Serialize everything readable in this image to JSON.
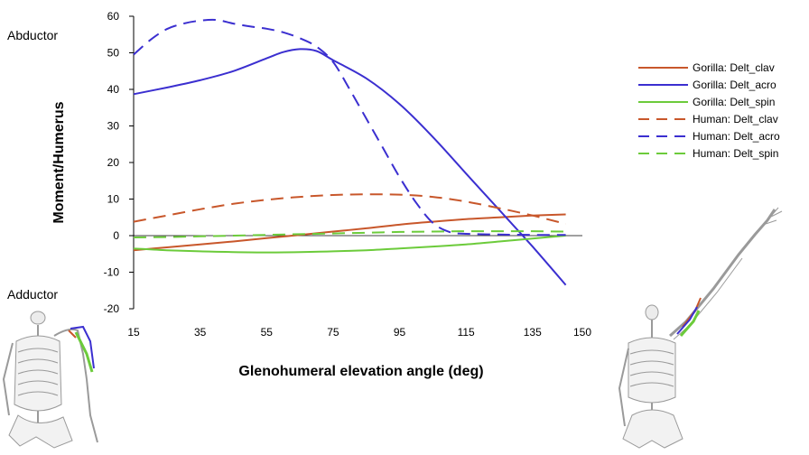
{
  "chart_data": {
    "type": "line",
    "xlabel": "Glenohumeral elevation angle (deg)",
    "ylabel": "Moment/Humerus",
    "xlim": [
      15,
      150
    ],
    "ylim": [
      -20,
      60
    ],
    "x_ticks": [
      15,
      35,
      55,
      75,
      95,
      115,
      135,
      150
    ],
    "y_ticks": [
      -20,
      -10,
      0,
      10,
      20,
      30,
      40,
      50,
      60
    ],
    "grid": false,
    "zero_line": true,
    "legend_position": "right",
    "annotations": {
      "top": "Abductor",
      "bottom": "Adductor"
    },
    "series": [
      {
        "name": "Gorilla: Delt_clav",
        "color": "#C8572B",
        "dash": "solid",
        "x": [
          15,
          25,
          35,
          45,
          55,
          65,
          75,
          85,
          95,
          105,
          115,
          125,
          135,
          145
        ],
        "y": [
          -4.0,
          -3.2,
          -2.4,
          -1.6,
          -0.7,
          0.2,
          1.1,
          2.0,
          3.0,
          3.8,
          4.5,
          5.0,
          5.5,
          5.8
        ]
      },
      {
        "name": "Gorilla: Delt_acro",
        "color": "#3B2FD0",
        "dash": "solid",
        "x": [
          15,
          25,
          35,
          45,
          55,
          60,
          65,
          70,
          75,
          85,
          95,
          105,
          115,
          125,
          135,
          145
        ],
        "y": [
          38.7,
          40.5,
          42.5,
          45.0,
          48.5,
          50.2,
          51.0,
          50.5,
          48.0,
          43.0,
          36.0,
          27.0,
          17.0,
          7.0,
          -3.0,
          -13.5
        ]
      },
      {
        "name": "Gorilla: Delt_spin",
        "color": "#6CCB3B",
        "dash": "solid",
        "x": [
          15,
          25,
          35,
          45,
          55,
          65,
          75,
          85,
          95,
          105,
          115,
          125,
          135,
          145
        ],
        "y": [
          -3.5,
          -4.0,
          -4.3,
          -4.5,
          -4.6,
          -4.5,
          -4.3,
          -4.0,
          -3.5,
          -3.0,
          -2.4,
          -1.6,
          -0.8,
          0.0
        ]
      },
      {
        "name": "Human: Delt_clav",
        "color": "#C8572B",
        "dash": "dashed",
        "x": [
          15,
          25,
          35,
          45,
          55,
          65,
          75,
          85,
          95,
          105,
          115,
          125,
          135,
          145
        ],
        "y": [
          3.8,
          5.5,
          7.2,
          8.7,
          9.8,
          10.6,
          11.1,
          11.3,
          11.2,
          10.6,
          9.3,
          7.5,
          5.5,
          3.2
        ]
      },
      {
        "name": "Human: Delt_acro",
        "color": "#3B2FD0",
        "dash": "dashed",
        "x": [
          15,
          20,
          25,
          30,
          35,
          40,
          45,
          50,
          55,
          60,
          65,
          70,
          75,
          80,
          85,
          90,
          95,
          100,
          105,
          110,
          115,
          125,
          135,
          145
        ],
        "y": [
          49.5,
          53.5,
          56.5,
          58.0,
          58.8,
          59.0,
          58.0,
          57.2,
          56.6,
          55.6,
          54.0,
          51.7,
          47.5,
          40.0,
          32.0,
          24.0,
          16.0,
          9.0,
          3.5,
          1.0,
          0.5,
          0.3,
          0.2,
          0.2
        ]
      },
      {
        "name": "Human: Delt_spin",
        "color": "#6CCB3B",
        "dash": "dashed",
        "x": [
          15,
          25,
          35,
          45,
          55,
          65,
          75,
          85,
          95,
          105,
          115,
          125,
          135,
          145
        ],
        "y": [
          -0.5,
          -0.4,
          -0.2,
          0.0,
          0.2,
          0.4,
          0.6,
          0.8,
          1.0,
          1.1,
          1.2,
          1.2,
          1.2,
          1.1
        ]
      }
    ]
  }
}
